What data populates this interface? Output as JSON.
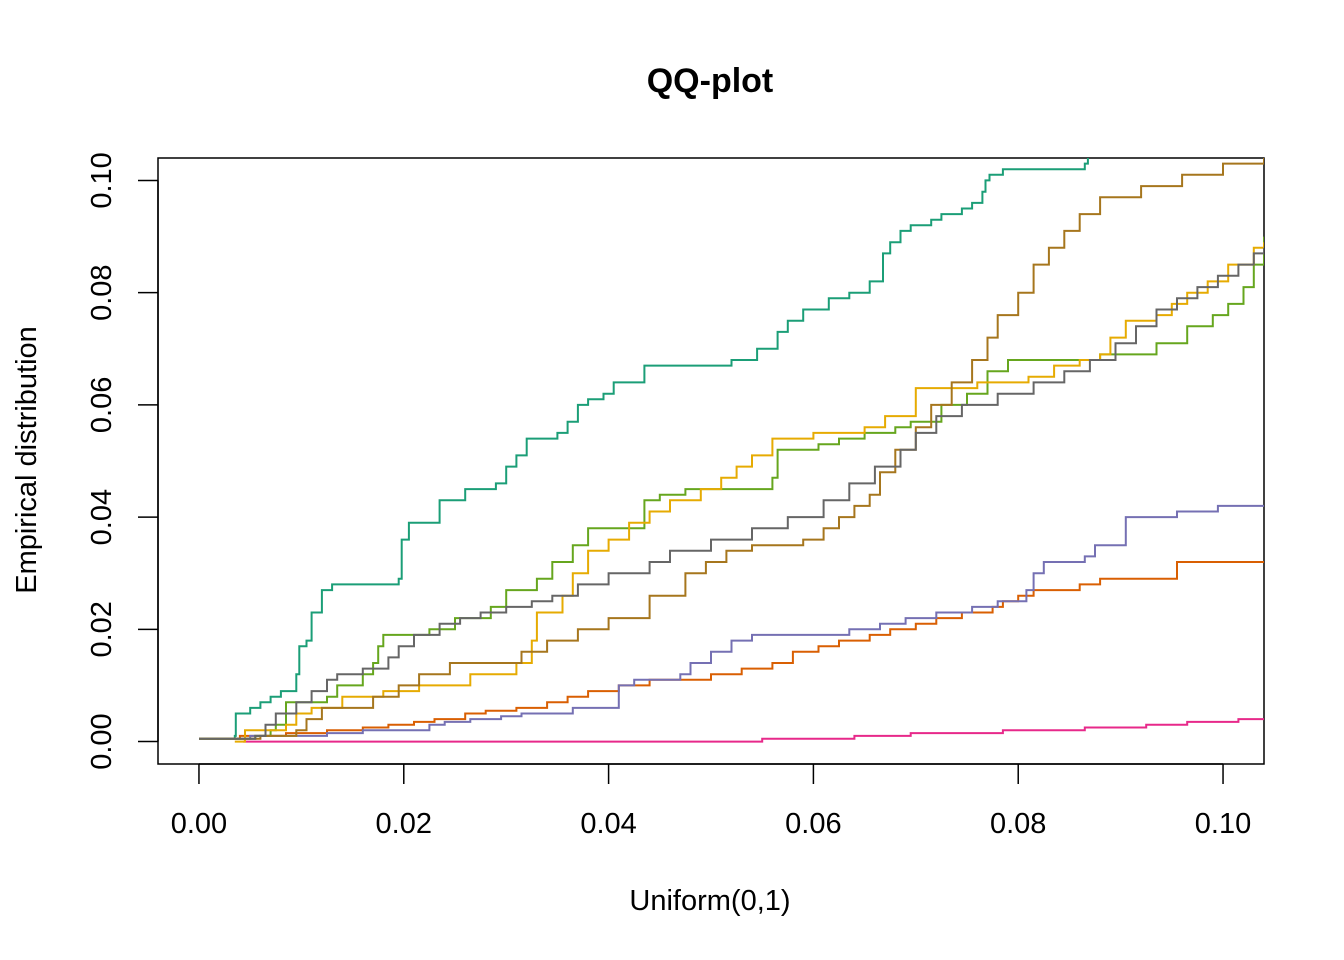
{
  "chart_data": {
    "type": "line",
    "title": "QQ-plot",
    "xlabel": "Uniform(0,1)",
    "ylabel": "Empirical distribution",
    "xlim": [
      -0.004,
      0.104
    ],
    "ylim": [
      -0.004,
      0.104
    ],
    "grid": false,
    "legend": "none",
    "x_ticks": [
      0.0,
      0.02,
      0.04,
      0.06,
      0.08,
      0.1
    ],
    "y_ticks": [
      0.0,
      0.02,
      0.04,
      0.06,
      0.08,
      0.1
    ],
    "x_tick_labels": [
      "0.00",
      "0.02",
      "0.04",
      "0.06",
      "0.08",
      "0.10"
    ],
    "y_tick_labels": [
      "0.00",
      "0.02",
      "0.04",
      "0.06",
      "0.08",
      "0.10"
    ],
    "series": [
      {
        "color": "#1b9e77",
        "points": [
          [
            0.0,
            0.0005
          ],
          [
            0.0035,
            0.001
          ],
          [
            0.0036,
            0.005
          ],
          [
            0.005,
            0.006
          ],
          [
            0.006,
            0.007
          ],
          [
            0.007,
            0.008
          ],
          [
            0.008,
            0.009
          ],
          [
            0.0095,
            0.012
          ],
          [
            0.0098,
            0.017
          ],
          [
            0.0105,
            0.018
          ],
          [
            0.011,
            0.023
          ],
          [
            0.012,
            0.027
          ],
          [
            0.013,
            0.028
          ],
          [
            0.0195,
            0.029
          ],
          [
            0.0198,
            0.036
          ],
          [
            0.0205,
            0.039
          ],
          [
            0.0235,
            0.043
          ],
          [
            0.026,
            0.045
          ],
          [
            0.029,
            0.046
          ],
          [
            0.03,
            0.049
          ],
          [
            0.031,
            0.051
          ],
          [
            0.032,
            0.054
          ],
          [
            0.035,
            0.055
          ],
          [
            0.036,
            0.057
          ],
          [
            0.037,
            0.06
          ],
          [
            0.038,
            0.061
          ],
          [
            0.0395,
            0.062
          ],
          [
            0.0405,
            0.064
          ],
          [
            0.0435,
            0.067
          ],
          [
            0.052,
            0.068
          ],
          [
            0.0545,
            0.07
          ],
          [
            0.0565,
            0.073
          ],
          [
            0.0575,
            0.075
          ],
          [
            0.059,
            0.077
          ],
          [
            0.0615,
            0.079
          ],
          [
            0.0635,
            0.08
          ],
          [
            0.0655,
            0.082
          ],
          [
            0.0668,
            0.087
          ],
          [
            0.0675,
            0.089
          ],
          [
            0.0685,
            0.091
          ],
          [
            0.0695,
            0.092
          ],
          [
            0.0715,
            0.093
          ],
          [
            0.0725,
            0.094
          ],
          [
            0.0745,
            0.095
          ],
          [
            0.0755,
            0.096
          ],
          [
            0.0765,
            0.098
          ],
          [
            0.0768,
            0.1
          ],
          [
            0.0772,
            0.101
          ],
          [
            0.0785,
            0.102
          ],
          [
            0.0865,
            0.103
          ],
          [
            0.0868,
            0.104
          ]
        ]
      },
      {
        "color": "#d95f02",
        "points": [
          [
            0.0,
            0.0005
          ],
          [
            0.004,
            0.001
          ],
          [
            0.0085,
            0.0015
          ],
          [
            0.0125,
            0.002
          ],
          [
            0.016,
            0.0025
          ],
          [
            0.0185,
            0.003
          ],
          [
            0.021,
            0.0035
          ],
          [
            0.023,
            0.004
          ],
          [
            0.026,
            0.005
          ],
          [
            0.028,
            0.0055
          ],
          [
            0.031,
            0.006
          ],
          [
            0.034,
            0.007
          ],
          [
            0.036,
            0.008
          ],
          [
            0.038,
            0.009
          ],
          [
            0.041,
            0.01
          ],
          [
            0.044,
            0.011
          ],
          [
            0.05,
            0.012
          ],
          [
            0.053,
            0.013
          ],
          [
            0.056,
            0.014
          ],
          [
            0.058,
            0.016
          ],
          [
            0.0605,
            0.017
          ],
          [
            0.0625,
            0.018
          ],
          [
            0.0655,
            0.019
          ],
          [
            0.0675,
            0.02
          ],
          [
            0.07,
            0.021
          ],
          [
            0.072,
            0.022
          ],
          [
            0.0745,
            0.023
          ],
          [
            0.0775,
            0.024
          ],
          [
            0.0785,
            0.025
          ],
          [
            0.08,
            0.026
          ],
          [
            0.0815,
            0.027
          ],
          [
            0.086,
            0.028
          ],
          [
            0.088,
            0.029
          ],
          [
            0.0955,
            0.03
          ],
          [
            0.0955,
            0.032
          ],
          [
            0.104,
            0.032
          ]
        ]
      },
      {
        "color": "#7570b3",
        "points": [
          [
            0.0,
            0.0005
          ],
          [
            0.005,
            0.001
          ],
          [
            0.0125,
            0.0015
          ],
          [
            0.016,
            0.002
          ],
          [
            0.0225,
            0.003
          ],
          [
            0.024,
            0.0035
          ],
          [
            0.0265,
            0.004
          ],
          [
            0.0295,
            0.0045
          ],
          [
            0.0315,
            0.005
          ],
          [
            0.0365,
            0.006
          ],
          [
            0.041,
            0.01
          ],
          [
            0.0425,
            0.011
          ],
          [
            0.047,
            0.012
          ],
          [
            0.048,
            0.014
          ],
          [
            0.05,
            0.016
          ],
          [
            0.052,
            0.018
          ],
          [
            0.054,
            0.019
          ],
          [
            0.0635,
            0.02
          ],
          [
            0.0665,
            0.021
          ],
          [
            0.069,
            0.022
          ],
          [
            0.072,
            0.023
          ],
          [
            0.0755,
            0.024
          ],
          [
            0.078,
            0.025
          ],
          [
            0.0808,
            0.027
          ],
          [
            0.0815,
            0.03
          ],
          [
            0.0825,
            0.032
          ],
          [
            0.0865,
            0.033
          ],
          [
            0.0875,
            0.035
          ],
          [
            0.0905,
            0.036
          ],
          [
            0.0905,
            0.04
          ],
          [
            0.0955,
            0.041
          ],
          [
            0.0995,
            0.042
          ],
          [
            0.104,
            0.042
          ]
        ]
      },
      {
        "color": "#e7298a",
        "points": [
          [
            0.0043,
            0.0
          ],
          [
            0.055,
            0.0005
          ],
          [
            0.064,
            0.001
          ],
          [
            0.0695,
            0.0015
          ],
          [
            0.0785,
            0.002
          ],
          [
            0.0865,
            0.0025
          ],
          [
            0.0925,
            0.003
          ],
          [
            0.0965,
            0.0035
          ],
          [
            0.1015,
            0.004
          ],
          [
            0.104,
            0.004
          ]
        ]
      },
      {
        "color": "#66a61e",
        "points": [
          [
            0.0,
            0.0005
          ],
          [
            0.0055,
            0.001
          ],
          [
            0.007,
            0.002
          ],
          [
            0.0075,
            0.003
          ],
          [
            0.0085,
            0.007
          ],
          [
            0.0125,
            0.008
          ],
          [
            0.0135,
            0.01
          ],
          [
            0.016,
            0.012
          ],
          [
            0.017,
            0.014
          ],
          [
            0.0175,
            0.017
          ],
          [
            0.018,
            0.019
          ],
          [
            0.0225,
            0.02
          ],
          [
            0.025,
            0.022
          ],
          [
            0.0285,
            0.024
          ],
          [
            0.03,
            0.027
          ],
          [
            0.033,
            0.029
          ],
          [
            0.0345,
            0.032
          ],
          [
            0.0365,
            0.035
          ],
          [
            0.038,
            0.038
          ],
          [
            0.0435,
            0.043
          ],
          [
            0.045,
            0.044
          ],
          [
            0.0475,
            0.045
          ],
          [
            0.056,
            0.047
          ],
          [
            0.0565,
            0.052
          ],
          [
            0.0605,
            0.053
          ],
          [
            0.0625,
            0.054
          ],
          [
            0.065,
            0.055
          ],
          [
            0.068,
            0.056
          ],
          [
            0.0695,
            0.057
          ],
          [
            0.0725,
            0.06
          ],
          [
            0.075,
            0.062
          ],
          [
            0.077,
            0.066
          ],
          [
            0.079,
            0.068
          ],
          [
            0.088,
            0.069
          ],
          [
            0.0935,
            0.071
          ],
          [
            0.0965,
            0.074
          ],
          [
            0.099,
            0.076
          ],
          [
            0.1005,
            0.078
          ],
          [
            0.102,
            0.081
          ],
          [
            0.103,
            0.085
          ],
          [
            0.104,
            0.09
          ]
        ]
      },
      {
        "color": "#e6ab02",
        "points": [
          [
            0.0035,
            0.0
          ],
          [
            0.0045,
            0.002
          ],
          [
            0.0085,
            0.003
          ],
          [
            0.0095,
            0.005
          ],
          [
            0.011,
            0.006
          ],
          [
            0.014,
            0.008
          ],
          [
            0.018,
            0.009
          ],
          [
            0.0215,
            0.01
          ],
          [
            0.0265,
            0.012
          ],
          [
            0.031,
            0.014
          ],
          [
            0.0325,
            0.018
          ],
          [
            0.033,
            0.023
          ],
          [
            0.0355,
            0.026
          ],
          [
            0.0365,
            0.03
          ],
          [
            0.038,
            0.034
          ],
          [
            0.04,
            0.036
          ],
          [
            0.042,
            0.039
          ],
          [
            0.044,
            0.041
          ],
          [
            0.046,
            0.043
          ],
          [
            0.049,
            0.045
          ],
          [
            0.051,
            0.047
          ],
          [
            0.0525,
            0.049
          ],
          [
            0.054,
            0.051
          ],
          [
            0.056,
            0.054
          ],
          [
            0.06,
            0.055
          ],
          [
            0.065,
            0.056
          ],
          [
            0.067,
            0.058
          ],
          [
            0.07,
            0.063
          ],
          [
            0.076,
            0.064
          ],
          [
            0.081,
            0.065
          ],
          [
            0.0835,
            0.067
          ],
          [
            0.086,
            0.068
          ],
          [
            0.088,
            0.069
          ],
          [
            0.089,
            0.072
          ],
          [
            0.0905,
            0.075
          ],
          [
            0.0935,
            0.076
          ],
          [
            0.095,
            0.078
          ],
          [
            0.0965,
            0.08
          ],
          [
            0.0985,
            0.082
          ],
          [
            0.1005,
            0.085
          ],
          [
            0.103,
            0.088
          ],
          [
            0.104,
            0.089
          ]
        ]
      },
      {
        "color": "#a6761d",
        "points": [
          [
            0.0,
            0.0005
          ],
          [
            0.006,
            0.001
          ],
          [
            0.0095,
            0.002
          ],
          [
            0.0105,
            0.004
          ],
          [
            0.012,
            0.006
          ],
          [
            0.017,
            0.008
          ],
          [
            0.0195,
            0.01
          ],
          [
            0.0215,
            0.012
          ],
          [
            0.0245,
            0.014
          ],
          [
            0.0315,
            0.016
          ],
          [
            0.034,
            0.018
          ],
          [
            0.037,
            0.02
          ],
          [
            0.04,
            0.022
          ],
          [
            0.044,
            0.026
          ],
          [
            0.0475,
            0.03
          ],
          [
            0.0495,
            0.032
          ],
          [
            0.0515,
            0.034
          ],
          [
            0.054,
            0.035
          ],
          [
            0.059,
            0.036
          ],
          [
            0.061,
            0.038
          ],
          [
            0.0625,
            0.04
          ],
          [
            0.064,
            0.042
          ],
          [
            0.0655,
            0.044
          ],
          [
            0.0665,
            0.048
          ],
          [
            0.068,
            0.052
          ],
          [
            0.07,
            0.056
          ],
          [
            0.0715,
            0.06
          ],
          [
            0.0735,
            0.064
          ],
          [
            0.0755,
            0.068
          ],
          [
            0.077,
            0.072
          ],
          [
            0.078,
            0.076
          ],
          [
            0.08,
            0.08
          ],
          [
            0.0815,
            0.085
          ],
          [
            0.083,
            0.088
          ],
          [
            0.0845,
            0.091
          ],
          [
            0.086,
            0.094
          ],
          [
            0.088,
            0.097
          ],
          [
            0.092,
            0.099
          ],
          [
            0.096,
            0.101
          ],
          [
            0.1,
            0.103
          ],
          [
            0.104,
            0.104
          ]
        ]
      },
      {
        "color": "#666666",
        "points": [
          [
            0.0,
            0.0005
          ],
          [
            0.0055,
            0.001
          ],
          [
            0.0065,
            0.003
          ],
          [
            0.0075,
            0.005
          ],
          [
            0.0095,
            0.007
          ],
          [
            0.011,
            0.009
          ],
          [
            0.0125,
            0.011
          ],
          [
            0.0135,
            0.012
          ],
          [
            0.016,
            0.013
          ],
          [
            0.0185,
            0.015
          ],
          [
            0.0195,
            0.017
          ],
          [
            0.021,
            0.019
          ],
          [
            0.0235,
            0.021
          ],
          [
            0.0255,
            0.022
          ],
          [
            0.0275,
            0.023
          ],
          [
            0.03,
            0.024
          ],
          [
            0.0325,
            0.025
          ],
          [
            0.0345,
            0.026
          ],
          [
            0.037,
            0.028
          ],
          [
            0.04,
            0.03
          ],
          [
            0.044,
            0.032
          ],
          [
            0.046,
            0.034
          ],
          [
            0.05,
            0.036
          ],
          [
            0.054,
            0.038
          ],
          [
            0.0575,
            0.04
          ],
          [
            0.061,
            0.043
          ],
          [
            0.0635,
            0.046
          ],
          [
            0.066,
            0.049
          ],
          [
            0.0685,
            0.052
          ],
          [
            0.07,
            0.055
          ],
          [
            0.072,
            0.058
          ],
          [
            0.0745,
            0.06
          ],
          [
            0.078,
            0.062
          ],
          [
            0.0815,
            0.064
          ],
          [
            0.0845,
            0.066
          ],
          [
            0.087,
            0.068
          ],
          [
            0.0895,
            0.071
          ],
          [
            0.0915,
            0.074
          ],
          [
            0.0935,
            0.077
          ],
          [
            0.0955,
            0.079
          ],
          [
            0.0975,
            0.081
          ],
          [
            0.0995,
            0.083
          ],
          [
            0.1015,
            0.085
          ],
          [
            0.103,
            0.087
          ],
          [
            0.104,
            0.088
          ]
        ]
      }
    ]
  }
}
